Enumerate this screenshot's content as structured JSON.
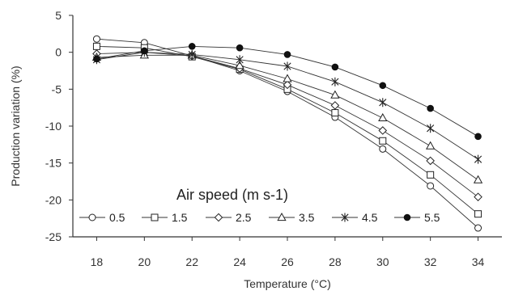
{
  "chart_data": {
    "type": "line",
    "xlabel": "Temperature (°C)",
    "ylabel": "Production variation (%)",
    "xlim": [
      17,
      35
    ],
    "ylim": [
      -25,
      5
    ],
    "x_ticks": [
      "18",
      "20",
      "22",
      "24",
      "26",
      "28",
      "30",
      "32",
      "34"
    ],
    "y_ticks": [
      "5",
      "0",
      "-5",
      "-10",
      "-15",
      "-20",
      "-25"
    ],
    "grid": false,
    "legend_title": "Air speed (m s-1)",
    "legend_position": "bottom-left",
    "x": [
      18,
      20,
      22,
      24,
      26,
      28,
      30,
      32,
      34
    ],
    "series": [
      {
        "name": "0.5",
        "marker": "circle-open",
        "values": [
          1.8,
          1.3,
          -0.5,
          -2.5,
          -5.3,
          -8.8,
          -13.1,
          -18.1,
          -23.8
        ]
      },
      {
        "name": "1.5",
        "marker": "square-open",
        "values": [
          0.8,
          0.6,
          -0.6,
          -2.3,
          -5.0,
          -8.2,
          -12.0,
          -16.6,
          -21.9
        ]
      },
      {
        "name": "2.5",
        "marker": "diamond-open",
        "values": [
          -0.2,
          0.0,
          -0.5,
          -2.2,
          -4.4,
          -7.2,
          -10.6,
          -14.7,
          -19.6
        ]
      },
      {
        "name": "3.5",
        "marker": "triangle-open",
        "values": [
          -0.7,
          -0.4,
          -0.4,
          -1.8,
          -3.6,
          -5.8,
          -8.9,
          -12.7,
          -17.3
        ]
      },
      {
        "name": "4.5",
        "marker": "asterisk",
        "values": [
          -1.0,
          0.0,
          -0.3,
          -1.0,
          -1.9,
          -4.0,
          -6.8,
          -10.3,
          -14.5
        ]
      },
      {
        "name": "5.5",
        "marker": "circle-filled",
        "values": [
          -0.9,
          0.2,
          0.8,
          0.6,
          -0.3,
          -2.0,
          -4.5,
          -7.6,
          -11.4
        ]
      }
    ]
  }
}
